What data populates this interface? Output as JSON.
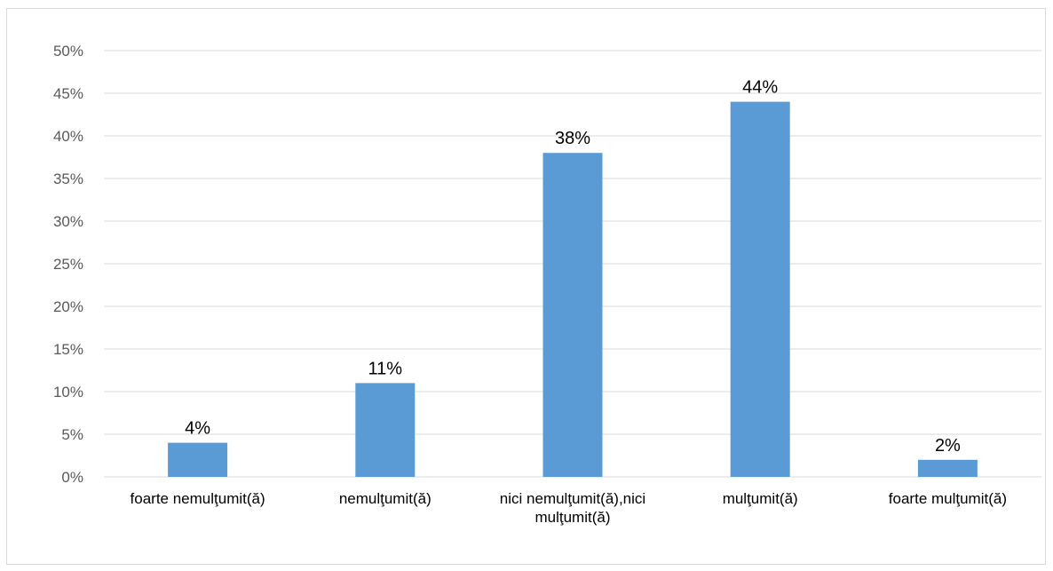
{
  "chart_data": {
    "type": "bar",
    "categories": [
      "foarte nemulţumit(ă)",
      "nemulţumit(ă)",
      "nici nemulţumit(ă),nici mulţumit(ă)",
      "mulţumit(ă)",
      "foarte mulţumit(ă)"
    ],
    "category_lines": [
      [
        "foarte nemulţumit(ă)"
      ],
      [
        "nemulţumit(ă)"
      ],
      [
        "nici nemulţumit(ă),nici",
        "mulţumit(ă)"
      ],
      [
        "mulţumit(ă)"
      ],
      [
        "foarte mulţumit(ă)"
      ]
    ],
    "values": [
      4,
      11,
      38,
      44,
      2
    ],
    "data_labels": [
      "4%",
      "11%",
      "38%",
      "44%",
      "2%"
    ],
    "ylim": [
      0,
      50
    ],
    "y_ticks": [
      0,
      5,
      10,
      15,
      20,
      25,
      30,
      35,
      40,
      45,
      50
    ],
    "y_tick_labels": [
      "0%",
      "5%",
      "10%",
      "15%",
      "20%",
      "25%",
      "30%",
      "35%",
      "40%",
      "45%",
      "50%"
    ],
    "title": "",
    "xlabel": "",
    "ylabel": "",
    "grid": true,
    "legend": "none",
    "colors": {
      "bar": "#5b9bd5",
      "grid": "#d9d9d9",
      "axis": "#d9d9d9",
      "tick_text": "#595959",
      "label_text": "#000000"
    }
  }
}
